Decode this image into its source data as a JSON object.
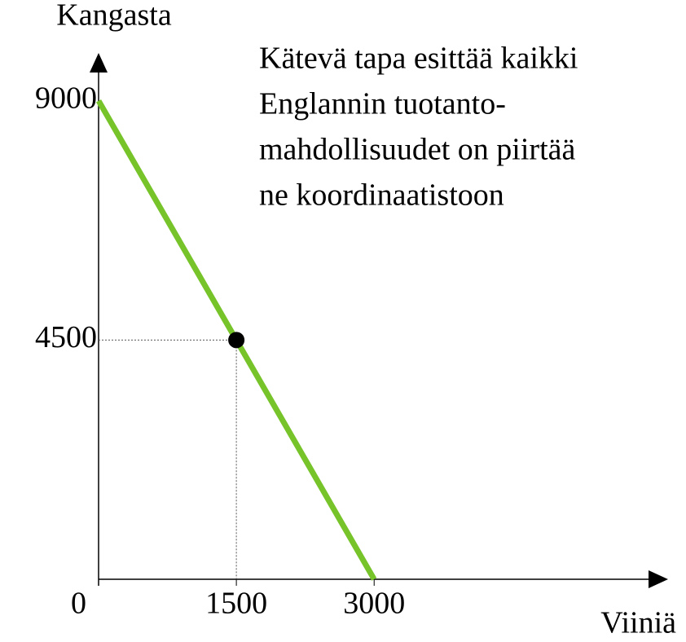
{
  "chart_data": {
    "type": "line",
    "y_label": "Kangasta",
    "x_label": "Viiniä",
    "annotation": [
      "Kätevä tapa esittää kaikki",
      "Englannin tuotanto-",
      "mahdollisuudet on piirtää",
      "ne koordinaatistoon"
    ],
    "series": [
      {
        "x": [
          0,
          1500,
          3000
        ],
        "values": [
          9000,
          4500,
          0
        ],
        "color": "#77c32a"
      }
    ],
    "points": {
      "x": [
        1500
      ],
      "values": [
        4500
      ],
      "color": "#000000"
    },
    "xlim": [
      0,
      6200
    ],
    "ylim": [
      0,
      9900
    ],
    "xticks": [
      0,
      1500,
      3000
    ],
    "yticks": [
      4500,
      9000
    ]
  }
}
